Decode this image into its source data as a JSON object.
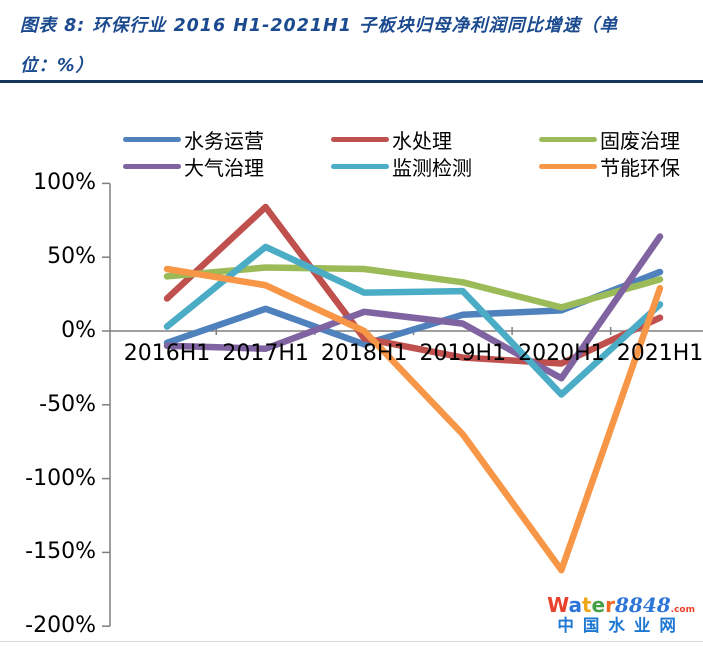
{
  "header": {
    "title_line1": "图表 8:  环保行业 2016 H1-2021H1 子板块归母净利润同比增速（单",
    "title_line2": "位：%）"
  },
  "chart_data": {
    "type": "line",
    "title": "环保行业 2016H1-2021H1 子板块归母净利润同比增速（单位：%）",
    "xlabel": "",
    "ylabel": "",
    "categories": [
      "2016H1",
      "2017H1",
      "2018H1",
      "2019H1",
      "2020H1",
      "2021H1"
    ],
    "series": [
      {
        "id": "water-operations",
        "name": "水务运营",
        "color": "#4F81BD",
        "values": [
          -8,
          15,
          -9,
          11,
          14,
          40
        ]
      },
      {
        "id": "water-treatment",
        "name": "水处理",
        "color": "#C0504D",
        "values": [
          22,
          84,
          -5,
          -18,
          -22,
          9
        ]
      },
      {
        "id": "solid-waste",
        "name": "固废治理",
        "color": "#9BBB59",
        "values": [
          37,
          43,
          42,
          33,
          16,
          35
        ]
      },
      {
        "id": "air-treatment",
        "name": "大气治理",
        "color": "#8064A2",
        "values": [
          -10,
          -12,
          13,
          5,
          -32,
          64
        ]
      },
      {
        "id": "monitoring",
        "name": "监测检测",
        "color": "#4BACC6",
        "values": [
          3,
          57,
          26,
          27,
          -43,
          18
        ]
      },
      {
        "id": "energy-saving",
        "name": "节能环保",
        "color": "#F79646",
        "values": [
          42,
          31,
          0,
          -70,
          -162,
          29
        ]
      }
    ],
    "y_ticks": [
      {
        "label": "100%",
        "value": 100
      },
      {
        "label": "50%",
        "value": 50
      },
      {
        "label": "0%",
        "value": 0
      },
      {
        "label": "-50%",
        "value": -50
      },
      {
        "label": "-100%",
        "value": -100
      },
      {
        "label": "-150%",
        "value": -150
      },
      {
        "label": "-200%",
        "value": -200
      }
    ],
    "ylim": [
      -200,
      100
    ],
    "unit": "%",
    "grid": false,
    "legend_position": "top",
    "axis_color": "#7F7F7F"
  },
  "watermark": {
    "brand_letters": [
      {
        "ch": "W",
        "color": "#E8412C"
      },
      {
        "ch": "a",
        "color": "#2E75D8"
      },
      {
        "ch": "t",
        "color": "#F2A71B"
      },
      {
        "ch": "e",
        "color": "#43A047"
      },
      {
        "ch": "r",
        "color": "#F26A21"
      }
    ],
    "brand_suffix": "8848",
    "brand_suffix_color": "#2E75D8",
    "brand_tld": ".com",
    "brand_tld_color": "#E8412C",
    "site_name": "中国水业网",
    "site_color": "#1E78D2"
  }
}
